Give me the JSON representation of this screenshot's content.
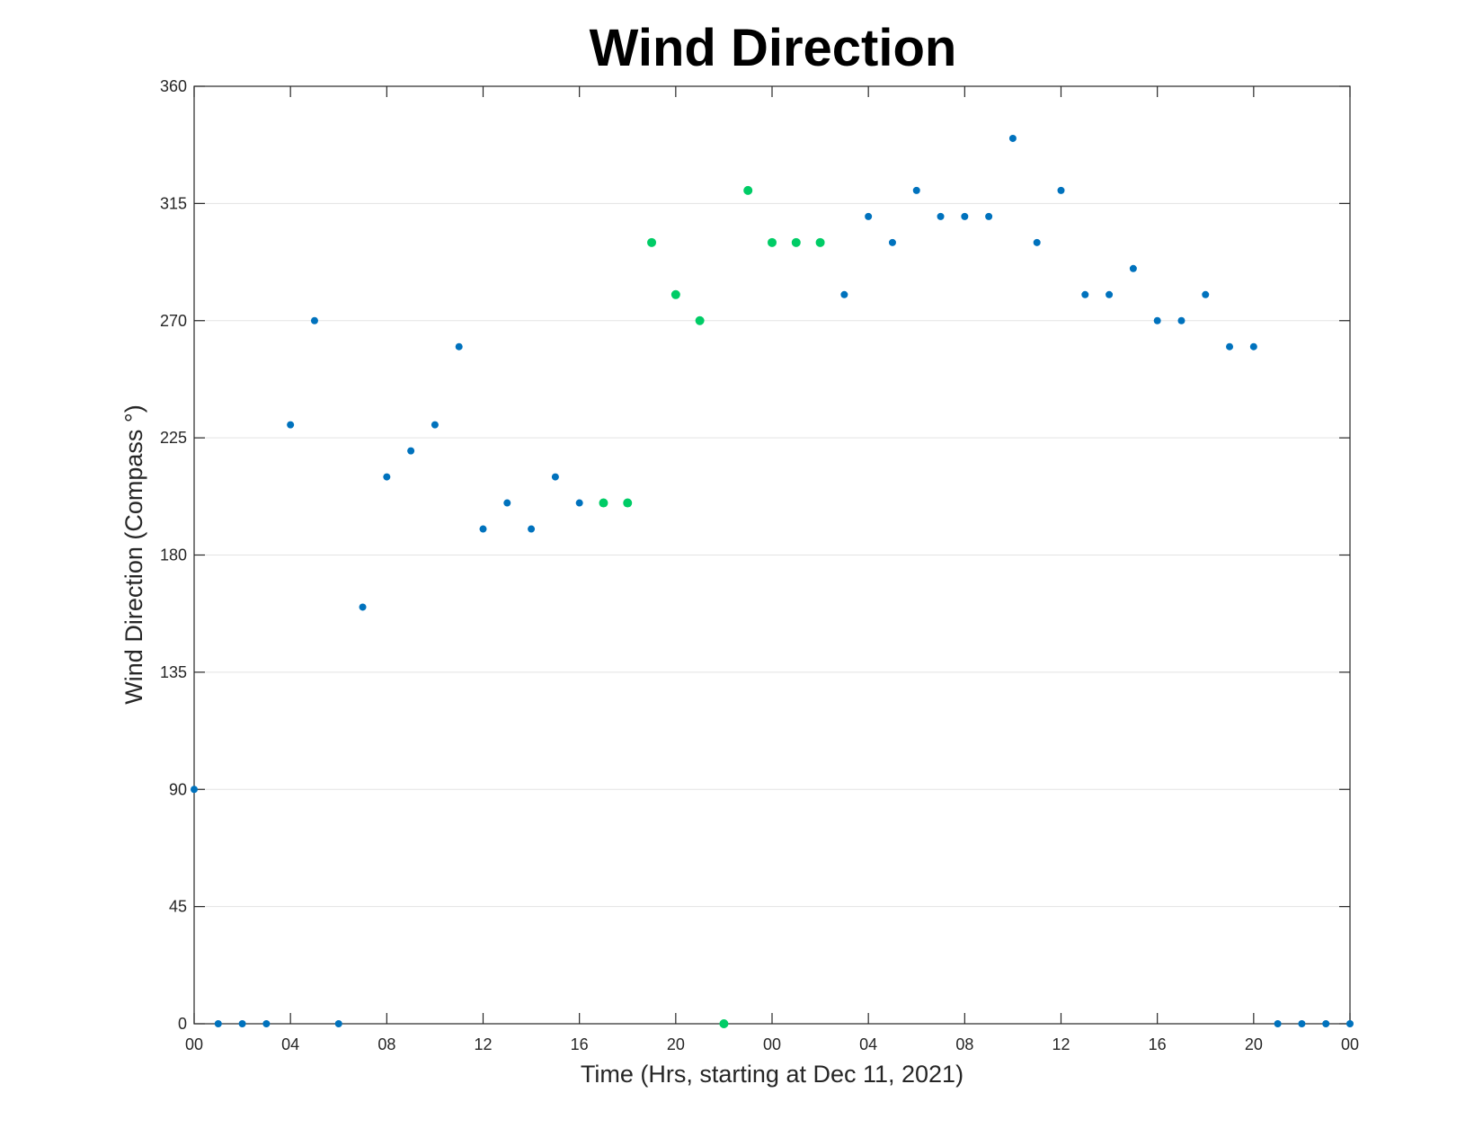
{
  "chart_data": {
    "type": "scatter",
    "title": "Wind Direction",
    "xlabel": "Time (Hrs, starting at Dec 11, 2021)",
    "ylabel": "Wind Direction (Compass °)",
    "xlim": [
      0,
      48
    ],
    "ylim": [
      0,
      360
    ],
    "grid": "y-only",
    "x_ticks": [
      0,
      4,
      8,
      12,
      16,
      20,
      24,
      28,
      32,
      36,
      40,
      44,
      48
    ],
    "x_tick_labels": [
      "00",
      "04",
      "08",
      "12",
      "16",
      "20",
      "00",
      "04",
      "08",
      "12",
      "16",
      "20",
      "00"
    ],
    "y_ticks": [
      0,
      45,
      90,
      135,
      180,
      225,
      270,
      315,
      360
    ],
    "y_tick_labels": [
      "0",
      "45",
      "90",
      "135",
      "180",
      "225",
      "270",
      "315",
      "360"
    ],
    "series": [
      {
        "color": "#0072bd",
        "marker_size": 4,
        "x": [
          0,
          1,
          2,
          3,
          4,
          5,
          6,
          7,
          8,
          9,
          10,
          11,
          12,
          13,
          14,
          15,
          16,
          27,
          28,
          29,
          30,
          31,
          32,
          33,
          34,
          35,
          36,
          37,
          38,
          39,
          40,
          41,
          42,
          43,
          44,
          45,
          46,
          47,
          48
        ],
        "y": [
          90,
          0,
          0,
          0,
          230,
          270,
          0,
          160,
          210,
          220,
          230,
          260,
          190,
          200,
          190,
          210,
          200,
          280,
          310,
          300,
          320,
          310,
          310,
          310,
          340,
          300,
          320,
          280,
          280,
          290,
          270,
          270,
          280,
          260,
          260,
          0,
          0,
          0,
          0
        ]
      },
      {
        "color": "#00cc66",
        "marker_size": 5,
        "x": [
          17,
          18,
          19,
          20,
          21,
          22,
          23,
          24,
          25,
          26
        ],
        "y": [
          200,
          200,
          300,
          280,
          270,
          0,
          320,
          300,
          300,
          300
        ]
      }
    ]
  }
}
